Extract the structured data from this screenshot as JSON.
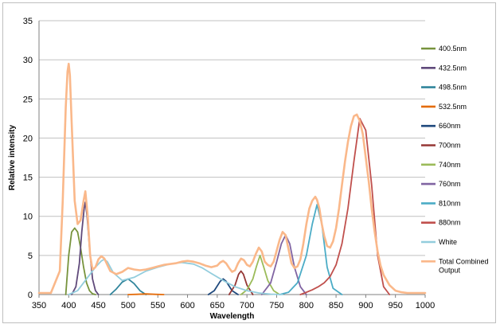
{
  "chart_data": {
    "type": "line",
    "title": "",
    "xlabel": "Wavelength",
    "ylabel": "Relative intensity",
    "xlim": [
      350,
      1000
    ],
    "ylim": [
      0,
      35
    ],
    "xticks": [
      350,
      400,
      450,
      500,
      550,
      600,
      650,
      700,
      750,
      800,
      850,
      900,
      950,
      1000
    ],
    "yticks": [
      0,
      5,
      10,
      15,
      20,
      25,
      30,
      35
    ],
    "grid": "horizontal",
    "legend_position": "right",
    "series": [
      {
        "name": "400.5nm",
        "color": "#77933c",
        "x": [
          395,
          400,
          405,
          410,
          415,
          420,
          425,
          430,
          435,
          440,
          445
        ],
        "y": [
          0,
          5,
          8,
          8.5,
          8,
          6,
          3.5,
          1.5,
          0.5,
          0.1,
          0
        ]
      },
      {
        "name": "432.5nm",
        "color": "#604a7b",
        "x": [
          405,
          412,
          418,
          422,
          426,
          428,
          431,
          435,
          440,
          445,
          450
        ],
        "y": [
          0,
          1,
          4,
          8,
          11,
          11.8,
          10,
          6,
          2,
          0.5,
          0
        ]
      },
      {
        "name": "498.5nm",
        "color": "#31859c",
        "x": [
          470,
          480,
          490,
          500,
          510,
          520,
          530
        ],
        "y": [
          0,
          0.7,
          1.6,
          2.0,
          1.4,
          0.5,
          0
        ]
      },
      {
        "name": "532.5nm",
        "color": "#e46c0a",
        "x": [
          500,
          515,
          530,
          545,
          560
        ],
        "y": [
          0,
          0.03,
          0.08,
          0.03,
          0
        ]
      },
      {
        "name": "660nm",
        "color": "#1f497d",
        "x": [
          635,
          645,
          655,
          660,
          665,
          675,
          685
        ],
        "y": [
          0,
          0.5,
          1.7,
          2.0,
          1.7,
          0.5,
          0
        ]
      },
      {
        "name": "700nm",
        "color": "#953735",
        "x": [
          670,
          680,
          686,
          690,
          694,
          700,
          710
        ],
        "y": [
          0,
          1.2,
          2.6,
          3.0,
          2.6,
          1.2,
          0
        ]
      },
      {
        "name": "740nm",
        "color": "#9bbb59",
        "x": [
          690,
          700,
          710,
          716,
          722,
          728,
          735,
          745,
          755
        ],
        "y": [
          0,
          0.6,
          2.0,
          3.6,
          5.0,
          3.6,
          1.8,
          0.5,
          0
        ]
      },
      {
        "name": "760nm",
        "color": "#8064a2",
        "x": [
          725,
          740,
          750,
          758,
          765,
          772,
          780,
          790,
          800
        ],
        "y": [
          0,
          1.5,
          4.2,
          6.5,
          7.6,
          6.5,
          3.5,
          1.0,
          0
        ]
      },
      {
        "name": "810nm",
        "color": "#4bacc6",
        "x": [
          755,
          770,
          785,
          800,
          810,
          818,
          826,
          835,
          845,
          860
        ],
        "y": [
          0,
          0.3,
          1.5,
          5.0,
          9.0,
          11.5,
          9.0,
          3.5,
          0.8,
          0
        ]
      },
      {
        "name": "880nm",
        "color": "#c0504d",
        "x": [
          790,
          800,
          810,
          820,
          830,
          840,
          850,
          860,
          870,
          880,
          890,
          900,
          910,
          920,
          930,
          940
        ],
        "y": [
          0,
          0.3,
          0.6,
          1.0,
          1.5,
          2.3,
          3.8,
          6.5,
          11.0,
          17.0,
          22.5,
          21.0,
          14.0,
          5.0,
          1.0,
          0
        ]
      },
      {
        "name": "White",
        "color": "#93cddd",
        "x": [
          400,
          415,
          430,
          445,
          455,
          460,
          465,
          475,
          490,
          510,
          530,
          550,
          570,
          590,
          610,
          625,
          640,
          660,
          680,
          700,
          720,
          740,
          760
        ],
        "y": [
          0,
          0.5,
          2.0,
          3.5,
          4.3,
          4.5,
          4.2,
          2.8,
          1.8,
          2.2,
          3.0,
          3.5,
          3.9,
          4.1,
          3.9,
          3.4,
          2.7,
          1.8,
          1.0,
          0.5,
          0.2,
          0.05,
          0
        ]
      },
      {
        "name": "Total Combined Output",
        "color": "#fab88a",
        "x": [
          350,
          370,
          385,
          390,
          395,
          398,
          400,
          402,
          405,
          410,
          415,
          420,
          425,
          428,
          432,
          436,
          440,
          445,
          450,
          455,
          460,
          465,
          470,
          480,
          490,
          500,
          510,
          520,
          530,
          540,
          550,
          560,
          570,
          580,
          590,
          600,
          610,
          620,
          630,
          640,
          650,
          655,
          660,
          665,
          670,
          675,
          680,
          685,
          690,
          695,
          700,
          705,
          710,
          715,
          720,
          725,
          730,
          735,
          740,
          745,
          750,
          755,
          760,
          765,
          770,
          775,
          780,
          785,
          790,
          795,
          800,
          805,
          810,
          815,
          818,
          822,
          826,
          830,
          835,
          840,
          845,
          850,
          855,
          860,
          865,
          870,
          875,
          880,
          885,
          890,
          895,
          900,
          905,
          910,
          915,
          920,
          925,
          930,
          940,
          950,
          960,
          970,
          980,
          1000
        ],
        "y": [
          0.2,
          0.2,
          3,
          12,
          24,
          28.5,
          29.5,
          28,
          22,
          12,
          9,
          9.5,
          12,
          13.2,
          10,
          5,
          3.2,
          3.5,
          4.5,
          4.9,
          4.6,
          3.8,
          3.0,
          2.6,
          2.9,
          3.4,
          3.2,
          3.1,
          3.2,
          3.4,
          3.6,
          3.8,
          3.9,
          4.0,
          4.2,
          4.3,
          4.2,
          4.0,
          3.7,
          3.5,
          3.7,
          4.1,
          4.3,
          4.0,
          3.4,
          2.9,
          3.1,
          4.0,
          4.6,
          4.4,
          3.8,
          3.6,
          4.2,
          5.2,
          6.0,
          5.5,
          4.2,
          3.8,
          3.6,
          4.2,
          5.6,
          7.0,
          8.0,
          7.6,
          5.8,
          4.0,
          3.4,
          3.6,
          4.5,
          6.5,
          9.0,
          11.0,
          12.0,
          12.5,
          12.1,
          11.0,
          9.0,
          7.5,
          6.2,
          6.0,
          6.8,
          8.5,
          11,
          14,
          17,
          19.5,
          21.5,
          22.8,
          23.0,
          22.2,
          20.5,
          17.5,
          14.5,
          11.0,
          8.0,
          5.5,
          3.7,
          2.5,
          1.2,
          0.5,
          0.3,
          0.2,
          0.2,
          0.2
        ]
      }
    ]
  }
}
